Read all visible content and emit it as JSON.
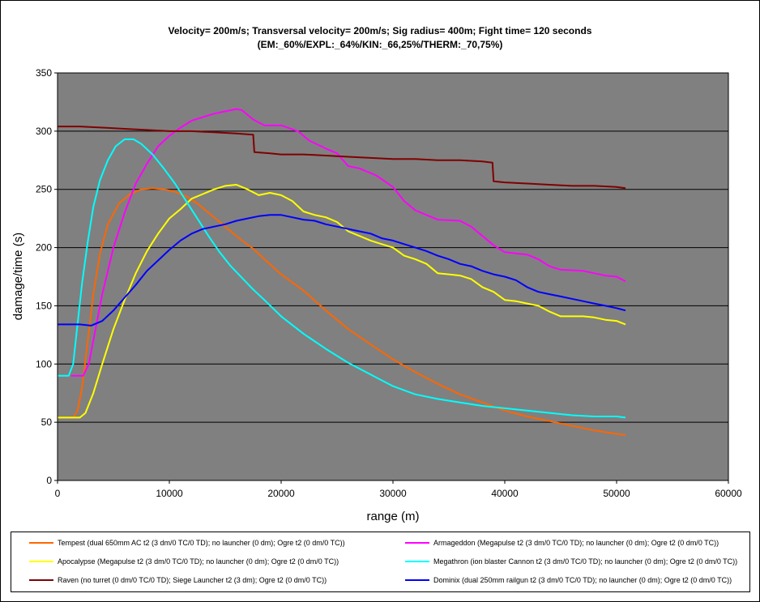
{
  "chart_data": {
    "type": "line",
    "title": "Velocity= 200m/s; Transversal velocity= 200m/s; Sig radius= 400m; Fight time= 120 seconds",
    "subtitle": "(EM:_60%/EXPL:_64%/KIN:_66,25%/THERM:_70,75%)",
    "xlabel": "range (m)",
    "ylabel": "damage/time (s)",
    "xlim": [
      0,
      60000
    ],
    "ylim": [
      0,
      350
    ],
    "xticks": [
      "0",
      "10000",
      "20000",
      "30000",
      "40000",
      "50000",
      "60000"
    ],
    "yticks": [
      "0",
      "50",
      "100",
      "150",
      "200",
      "250",
      "300",
      "350"
    ],
    "grid": "horizontal",
    "plot_background": "#808080",
    "legend_position": "bottom",
    "series": [
      {
        "name": "Tempest (dual 650mm AC t2 (3 dm/0 TC/0 TD); no launcher (0 dm); Ogre t2 (0 dm/0 TC))",
        "color": "#FF6600",
        "points": [
          [
            0,
            54
          ],
          [
            1400,
            54
          ],
          [
            1800,
            60
          ],
          [
            2200,
            80
          ],
          [
            2700,
            120
          ],
          [
            3200,
            160
          ],
          [
            3800,
            195
          ],
          [
            4500,
            220
          ],
          [
            5500,
            238
          ],
          [
            6500,
            246
          ],
          [
            7500,
            250
          ],
          [
            8500,
            251
          ],
          [
            9500,
            250
          ],
          [
            10500,
            248
          ],
          [
            11500,
            244
          ],
          [
            12500,
            238
          ],
          [
            13500,
            230
          ],
          [
            14500,
            222
          ],
          [
            15500,
            214
          ],
          [
            16500,
            206
          ],
          [
            17500,
            199
          ],
          [
            18500,
            190
          ],
          [
            20000,
            177
          ],
          [
            22000,
            163
          ],
          [
            24000,
            146
          ],
          [
            26000,
            130
          ],
          [
            28000,
            117
          ],
          [
            30000,
            104
          ],
          [
            32000,
            93
          ],
          [
            34000,
            83
          ],
          [
            36000,
            74
          ],
          [
            38000,
            67
          ],
          [
            40000,
            60
          ],
          [
            42000,
            55
          ],
          [
            44000,
            51
          ],
          [
            46000,
            47
          ],
          [
            48000,
            43
          ],
          [
            50000,
            40
          ],
          [
            50800,
            39
          ]
        ]
      },
      {
        "name": "Armageddon (Megapulse t2 (3 dm/0 TC/0 TD); no launcher (0 dm); Ogre t2 (0 dm/0 TC))",
        "color": "#FF00FF",
        "points": [
          [
            1200,
            90
          ],
          [
            2300,
            90
          ],
          [
            2800,
            100
          ],
          [
            3300,
            125
          ],
          [
            4000,
            160
          ],
          [
            5000,
            200
          ],
          [
            6000,
            230
          ],
          [
            7000,
            255
          ],
          [
            8000,
            272
          ],
          [
            9000,
            287
          ],
          [
            10000,
            296
          ],
          [
            11000,
            303
          ],
          [
            12000,
            309
          ],
          [
            13000,
            312
          ],
          [
            14000,
            315
          ],
          [
            15000,
            317
          ],
          [
            16000,
            319
          ],
          [
            16500,
            318
          ],
          [
            17500,
            310
          ],
          [
            18500,
            305
          ],
          [
            20000,
            305
          ],
          [
            21500,
            300
          ],
          [
            22500,
            292
          ],
          [
            24000,
            285
          ],
          [
            25000,
            281
          ],
          [
            26000,
            270
          ],
          [
            27000,
            268
          ],
          [
            28500,
            262
          ],
          [
            30000,
            252
          ],
          [
            31000,
            240
          ],
          [
            32000,
            232
          ],
          [
            34000,
            224
          ],
          [
            36000,
            223
          ],
          [
            37000,
            218
          ],
          [
            38000,
            210
          ],
          [
            39000,
            202
          ],
          [
            40000,
            196
          ],
          [
            42000,
            194
          ],
          [
            43000,
            190
          ],
          [
            44000,
            184
          ],
          [
            45000,
            181
          ],
          [
            47000,
            180
          ],
          [
            48000,
            178
          ],
          [
            49000,
            176
          ],
          [
            50000,
            175
          ],
          [
            50800,
            171
          ]
        ]
      },
      {
        "name": "Apocalypse (Megapulse t2 (3 dm/0 TC/0 TD); no launcher (0 dm); Ogre t2 (0 dm/0 TC))",
        "color": "#FFFF00",
        "points": [
          [
            0,
            54
          ],
          [
            2000,
            54
          ],
          [
            2500,
            58
          ],
          [
            3200,
            75
          ],
          [
            4000,
            100
          ],
          [
            5000,
            130
          ],
          [
            6000,
            155
          ],
          [
            7000,
            178
          ],
          [
            8000,
            197
          ],
          [
            9000,
            212
          ],
          [
            10000,
            225
          ],
          [
            11000,
            233
          ],
          [
            12000,
            242
          ],
          [
            13000,
            246
          ],
          [
            14000,
            250
          ],
          [
            15000,
            253
          ],
          [
            16000,
            254
          ],
          [
            17000,
            250
          ],
          [
            18000,
            245
          ],
          [
            19000,
            247
          ],
          [
            20000,
            245
          ],
          [
            21000,
            240
          ],
          [
            22000,
            231
          ],
          [
            23000,
            228
          ],
          [
            24000,
            226
          ],
          [
            25000,
            222
          ],
          [
            26000,
            214
          ],
          [
            27000,
            210
          ],
          [
            28000,
            206
          ],
          [
            29000,
            203
          ],
          [
            30000,
            200
          ],
          [
            31000,
            193
          ],
          [
            32000,
            190
          ],
          [
            33000,
            186
          ],
          [
            34000,
            178
          ],
          [
            35000,
            177
          ],
          [
            36000,
            176
          ],
          [
            37000,
            173
          ],
          [
            38000,
            166
          ],
          [
            39000,
            162
          ],
          [
            40000,
            155
          ],
          [
            41000,
            154
          ],
          [
            42000,
            152
          ],
          [
            43000,
            150
          ],
          [
            44000,
            145
          ],
          [
            45000,
            141
          ],
          [
            46000,
            141
          ],
          [
            47000,
            141
          ],
          [
            48000,
            140
          ],
          [
            49000,
            138
          ],
          [
            50000,
            137
          ],
          [
            50800,
            134
          ]
        ]
      },
      {
        "name": "Megathron (ion blaster Cannon t2 (3 dm/0 TC/0 TD); no launcher (0 dm); Ogre t2 (0 dm/0 TC))",
        "color": "#00FFFF",
        "points": [
          [
            0,
            90
          ],
          [
            1000,
            90
          ],
          [
            1400,
            100
          ],
          [
            1800,
            135
          ],
          [
            2200,
            170
          ],
          [
            2700,
            205
          ],
          [
            3200,
            235
          ],
          [
            3800,
            258
          ],
          [
            4500,
            275
          ],
          [
            5200,
            287
          ],
          [
            6000,
            293
          ],
          [
            6800,
            293
          ],
          [
            7500,
            289
          ],
          [
            8500,
            280
          ],
          [
            9500,
            268
          ],
          [
            10500,
            255
          ],
          [
            11500,
            240
          ],
          [
            12500,
            225
          ],
          [
            13500,
            210
          ],
          [
            14500,
            196
          ],
          [
            15500,
            184
          ],
          [
            16500,
            174
          ],
          [
            17500,
            164
          ],
          [
            18500,
            155
          ],
          [
            20000,
            141
          ],
          [
            22000,
            126
          ],
          [
            24000,
            113
          ],
          [
            26000,
            101
          ],
          [
            28000,
            91
          ],
          [
            30000,
            81
          ],
          [
            32000,
            74
          ],
          [
            34000,
            70
          ],
          [
            36000,
            67
          ],
          [
            38000,
            64
          ],
          [
            40000,
            62
          ],
          [
            42000,
            60
          ],
          [
            44000,
            58
          ],
          [
            46000,
            56
          ],
          [
            48000,
            55
          ],
          [
            50000,
            55
          ],
          [
            50800,
            54
          ]
        ]
      },
      {
        "name": "Raven (no turret (0 dm/0 TC/0 TD); Siege Launcher t2 (3 dm); Ogre t2 (0 dm/0 TC))",
        "color": "#800000",
        "points": [
          [
            0,
            304
          ],
          [
            2000,
            304
          ],
          [
            4000,
            303
          ],
          [
            6000,
            302
          ],
          [
            8000,
            301
          ],
          [
            10000,
            300
          ],
          [
            12000,
            300
          ],
          [
            14000,
            299
          ],
          [
            16000,
            298
          ],
          [
            17500,
            297
          ],
          [
            17600,
            282
          ],
          [
            19000,
            281
          ],
          [
            20000,
            280
          ],
          [
            22000,
            280
          ],
          [
            24000,
            279
          ],
          [
            26000,
            278
          ],
          [
            28000,
            277
          ],
          [
            30000,
            276
          ],
          [
            32000,
            276
          ],
          [
            34000,
            275
          ],
          [
            36000,
            275
          ],
          [
            38000,
            274
          ],
          [
            38900,
            273
          ],
          [
            39000,
            257
          ],
          [
            40000,
            256
          ],
          [
            42000,
            255
          ],
          [
            44000,
            254
          ],
          [
            46000,
            253
          ],
          [
            48000,
            253
          ],
          [
            50000,
            252
          ],
          [
            50800,
            251
          ]
        ]
      },
      {
        "name": "Dominix (dual 250mm railgun t2 (3 dm/0 TC/0 TD); no launcher (0 dm); Ogre t2 (0 dm/0 TC))",
        "color": "#0000FF",
        "points": [
          [
            0,
            134
          ],
          [
            2000,
            134
          ],
          [
            3000,
            133
          ],
          [
            4000,
            137
          ],
          [
            5000,
            146
          ],
          [
            6000,
            157
          ],
          [
            7000,
            168
          ],
          [
            8000,
            180
          ],
          [
            9000,
            189
          ],
          [
            10000,
            198
          ],
          [
            11000,
            206
          ],
          [
            12000,
            212
          ],
          [
            13000,
            216
          ],
          [
            14000,
            218
          ],
          [
            15000,
            220
          ],
          [
            16000,
            223
          ],
          [
            17000,
            225
          ],
          [
            18000,
            227
          ],
          [
            19000,
            228
          ],
          [
            20000,
            228
          ],
          [
            21000,
            226
          ],
          [
            22000,
            224
          ],
          [
            23000,
            223
          ],
          [
            24000,
            220
          ],
          [
            25000,
            218
          ],
          [
            26000,
            216
          ],
          [
            27000,
            214
          ],
          [
            28000,
            212
          ],
          [
            29000,
            208
          ],
          [
            30000,
            206
          ],
          [
            31000,
            203
          ],
          [
            32000,
            200
          ],
          [
            33000,
            197
          ],
          [
            34000,
            193
          ],
          [
            35000,
            190
          ],
          [
            36000,
            186
          ],
          [
            37000,
            184
          ],
          [
            38000,
            180
          ],
          [
            39000,
            177
          ],
          [
            40000,
            175
          ],
          [
            41000,
            172
          ],
          [
            42000,
            166
          ],
          [
            43000,
            162
          ],
          [
            44000,
            160
          ],
          [
            45000,
            158
          ],
          [
            46000,
            156
          ],
          [
            47000,
            154
          ],
          [
            48000,
            152
          ],
          [
            49000,
            150
          ],
          [
            50000,
            148
          ],
          [
            50800,
            146
          ]
        ]
      }
    ]
  }
}
